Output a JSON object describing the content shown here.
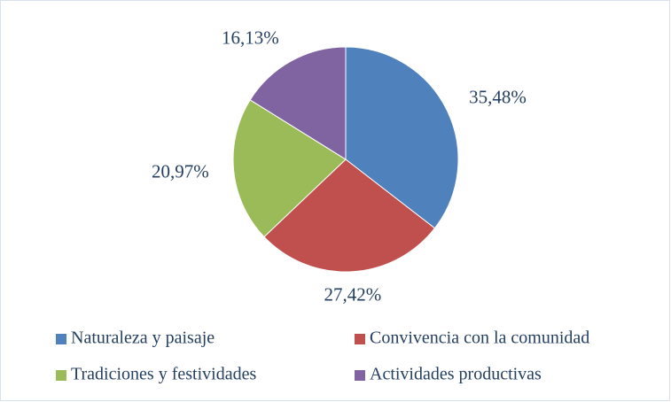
{
  "chart_data": {
    "type": "pie",
    "categories": [
      "Naturaleza y paisaje",
      "Convivencia con la comunidad",
      "Tradiciones y festividades",
      "Actividades productivas"
    ],
    "values": [
      35.48,
      27.42,
      20.97,
      16.13
    ],
    "value_labels": [
      "35,48%",
      "27,42%",
      "20,97%",
      "16,13%"
    ],
    "colors": [
      "#4f81bd",
      "#c0504d",
      "#9bbb59",
      "#8064a2"
    ],
    "legend": "bottom"
  }
}
